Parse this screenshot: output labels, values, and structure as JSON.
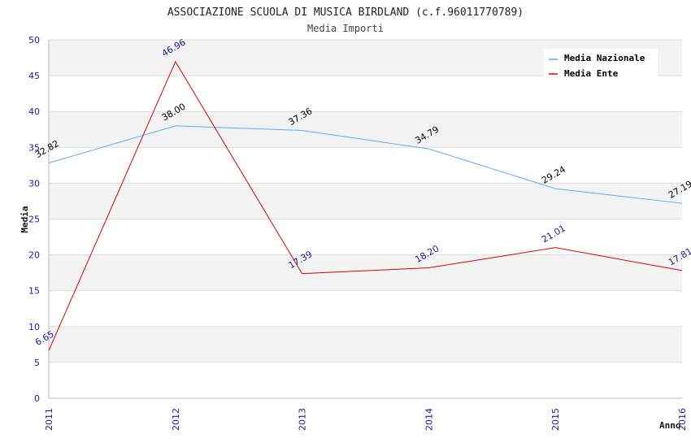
{
  "chart_data": {
    "type": "line",
    "title": "ASSOCIAZIONE SCUOLA DI MUSICA BIRDLAND (c.f.96011770789)",
    "subtitle": "Media Importi",
    "xlabel": "Anno",
    "ylabel": "Media",
    "ylim": [
      0,
      50
    ],
    "yticks": [
      0,
      5,
      10,
      15,
      20,
      25,
      30,
      35,
      40,
      45,
      50
    ],
    "x": [
      "2011",
      "2012",
      "2013",
      "2014",
      "2015",
      "2016"
    ],
    "grid": true,
    "legend_position": "top-right",
    "series": [
      {
        "name": "Media Nazionale",
        "color": "#66aaee",
        "label_color": "#000000",
        "values": [
          32.82,
          38.0,
          37.36,
          34.79,
          29.24,
          27.19
        ],
        "labels": [
          "32.82",
          "38.00",
          "37.36",
          "34.79",
          "29.24",
          "27.19"
        ]
      },
      {
        "name": "Media Ente",
        "color": "#dd0000",
        "label_color": "#1a1a99",
        "values": [
          6.65,
          46.96,
          17.39,
          18.2,
          21.01,
          17.81
        ],
        "labels": [
          "6.65",
          "46.96",
          "17.39",
          "18.20",
          "21.01",
          "17.81"
        ]
      }
    ]
  }
}
